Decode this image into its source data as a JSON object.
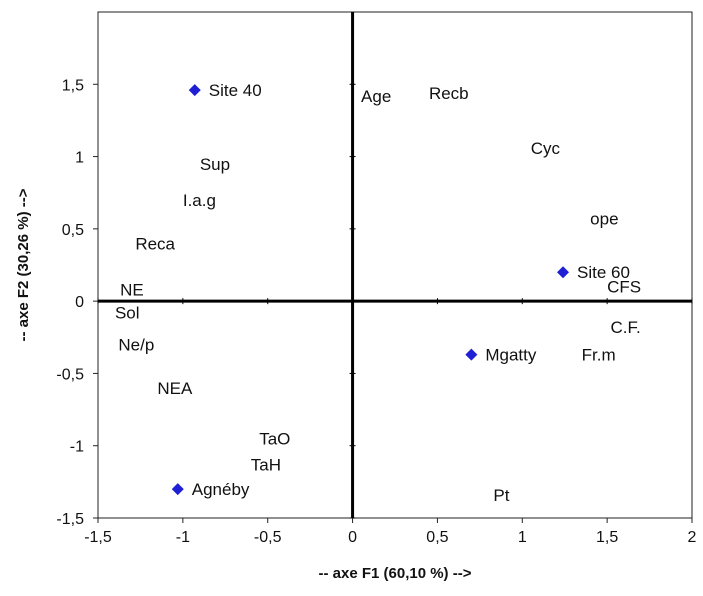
{
  "chart_data": {
    "type": "scatter",
    "title": "",
    "xlabel": "-- axe F1 (60,10 %) -->",
    "ylabel": "-- axe F2 (30,26 %) -->",
    "xlim": [
      -1.5,
      2
    ],
    "ylim": [
      -1.5,
      2
    ],
    "x_ticks": [
      -1.5,
      -1,
      -0.5,
      0,
      0.5,
      1,
      1.5,
      2
    ],
    "x_tick_labels": [
      "-1,5",
      "-1",
      "-0,5",
      "0",
      "0,5",
      "1",
      "1,5",
      "2"
    ],
    "y_ticks": [
      -1.5,
      -1,
      -0.5,
      0,
      0.5,
      1,
      1.5
    ],
    "y_tick_labels": [
      "-1,5",
      "-1",
      "-0,5",
      "0",
      "0,5",
      "1",
      "1,5"
    ],
    "grid": false,
    "legend": "none",
    "marker_color": "#1f1fd6",
    "series": [
      {
        "points": [
          {
            "label": "Site 40",
            "x": -0.93,
            "y": 1.46
          },
          {
            "label": "Site 60",
            "x": 1.24,
            "y": 0.2
          },
          {
            "label": "Mgatty",
            "x": 0.7,
            "y": -0.37
          },
          {
            "label": "Agnéby",
            "x": -1.03,
            "y": -1.3
          }
        ]
      },
      {
        "points": [
          {
            "label": "Age",
            "x": 0.05,
            "y": 1.42
          },
          {
            "label": "Recb",
            "x": 0.45,
            "y": 1.44
          },
          {
            "label": "Cyc",
            "x": 1.05,
            "y": 1.06
          },
          {
            "label": "Sup",
            "x": -0.9,
            "y": 0.95
          },
          {
            "label": "I.a.g",
            "x": -1.0,
            "y": 0.7
          },
          {
            "label": "ope",
            "x": 1.4,
            "y": 0.57
          },
          {
            "label": "Reca",
            "x": -1.28,
            "y": 0.4
          },
          {
            "label": "NE",
            "x": -1.37,
            "y": 0.08
          },
          {
            "label": "CFS",
            "x": 1.5,
            "y": 0.1
          },
          {
            "label": "Sol",
            "x": -1.4,
            "y": -0.08
          },
          {
            "label": "C.F.",
            "x": 1.52,
            "y": -0.18
          },
          {
            "label": "Ne/p",
            "x": -1.38,
            "y": -0.3
          },
          {
            "label": "Fr.m",
            "x": 1.35,
            "y": -0.37
          },
          {
            "label": "NEA",
            "x": -1.15,
            "y": -0.6
          },
          {
            "label": "TaO",
            "x": -0.55,
            "y": -0.95
          },
          {
            "label": "TaH",
            "x": -0.6,
            "y": -1.13
          },
          {
            "label": "Pt",
            "x": 0.83,
            "y": -1.34
          }
        ]
      }
    ]
  }
}
